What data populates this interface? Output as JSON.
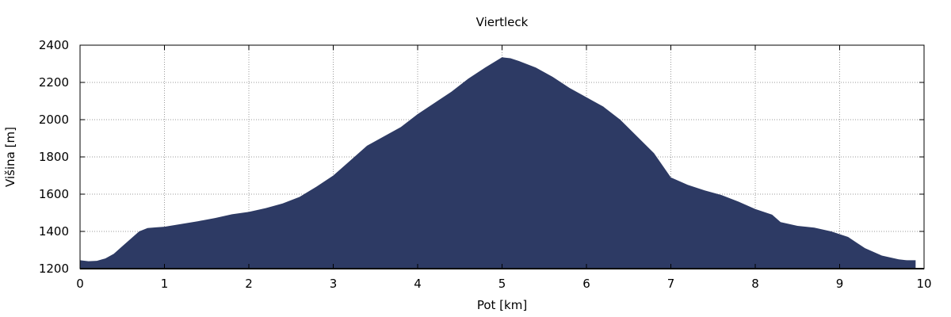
{
  "chart_data": {
    "type": "area",
    "title": "Viertleck",
    "xlabel": "Pot [km]",
    "ylabel": "Višina [m]",
    "xlim": [
      0,
      10
    ],
    "ylim": [
      1200,
      2400
    ],
    "xticks": [
      0,
      1,
      2,
      3,
      4,
      5,
      6,
      7,
      8,
      9,
      10
    ],
    "yticks": [
      1200,
      1400,
      1600,
      1800,
      2000,
      2200,
      2400
    ],
    "grid": true,
    "fill_color": "#2d3a64",
    "series": [
      {
        "x": [
          0,
          0.1,
          0.2,
          0.3,
          0.4,
          0.5,
          0.6,
          0.7,
          0.8,
          0.9,
          1.0,
          1.2,
          1.4,
          1.6,
          1.8,
          2.0,
          2.2,
          2.4,
          2.6,
          2.8,
          3.0,
          3.2,
          3.4,
          3.6,
          3.8,
          4.0,
          4.2,
          4.4,
          4.6,
          4.8,
          5.0,
          5.1,
          5.2,
          5.4,
          5.6,
          5.8,
          6.0,
          6.2,
          6.4,
          6.6,
          6.8,
          7.0,
          7.2,
          7.4,
          7.6,
          7.8,
          8.0,
          8.2,
          8.3,
          8.5,
          8.7,
          8.9,
          9.1,
          9.2,
          9.3,
          9.5,
          9.7,
          9.8,
          9.9
        ],
        "y": [
          1245,
          1240,
          1242,
          1255,
          1280,
          1320,
          1360,
          1400,
          1418,
          1422,
          1425,
          1440,
          1455,
          1472,
          1492,
          1505,
          1525,
          1550,
          1585,
          1640,
          1700,
          1780,
          1860,
          1910,
          1960,
          2030,
          2090,
          2150,
          2220,
          2280,
          2335,
          2330,
          2315,
          2280,
          2230,
          2170,
          2120,
          2070,
          2000,
          1910,
          1820,
          1690,
          1650,
          1620,
          1595,
          1560,
          1520,
          1490,
          1450,
          1430,
          1420,
          1400,
          1370,
          1340,
          1310,
          1270,
          1250,
          1245,
          1245
        ]
      }
    ]
  }
}
